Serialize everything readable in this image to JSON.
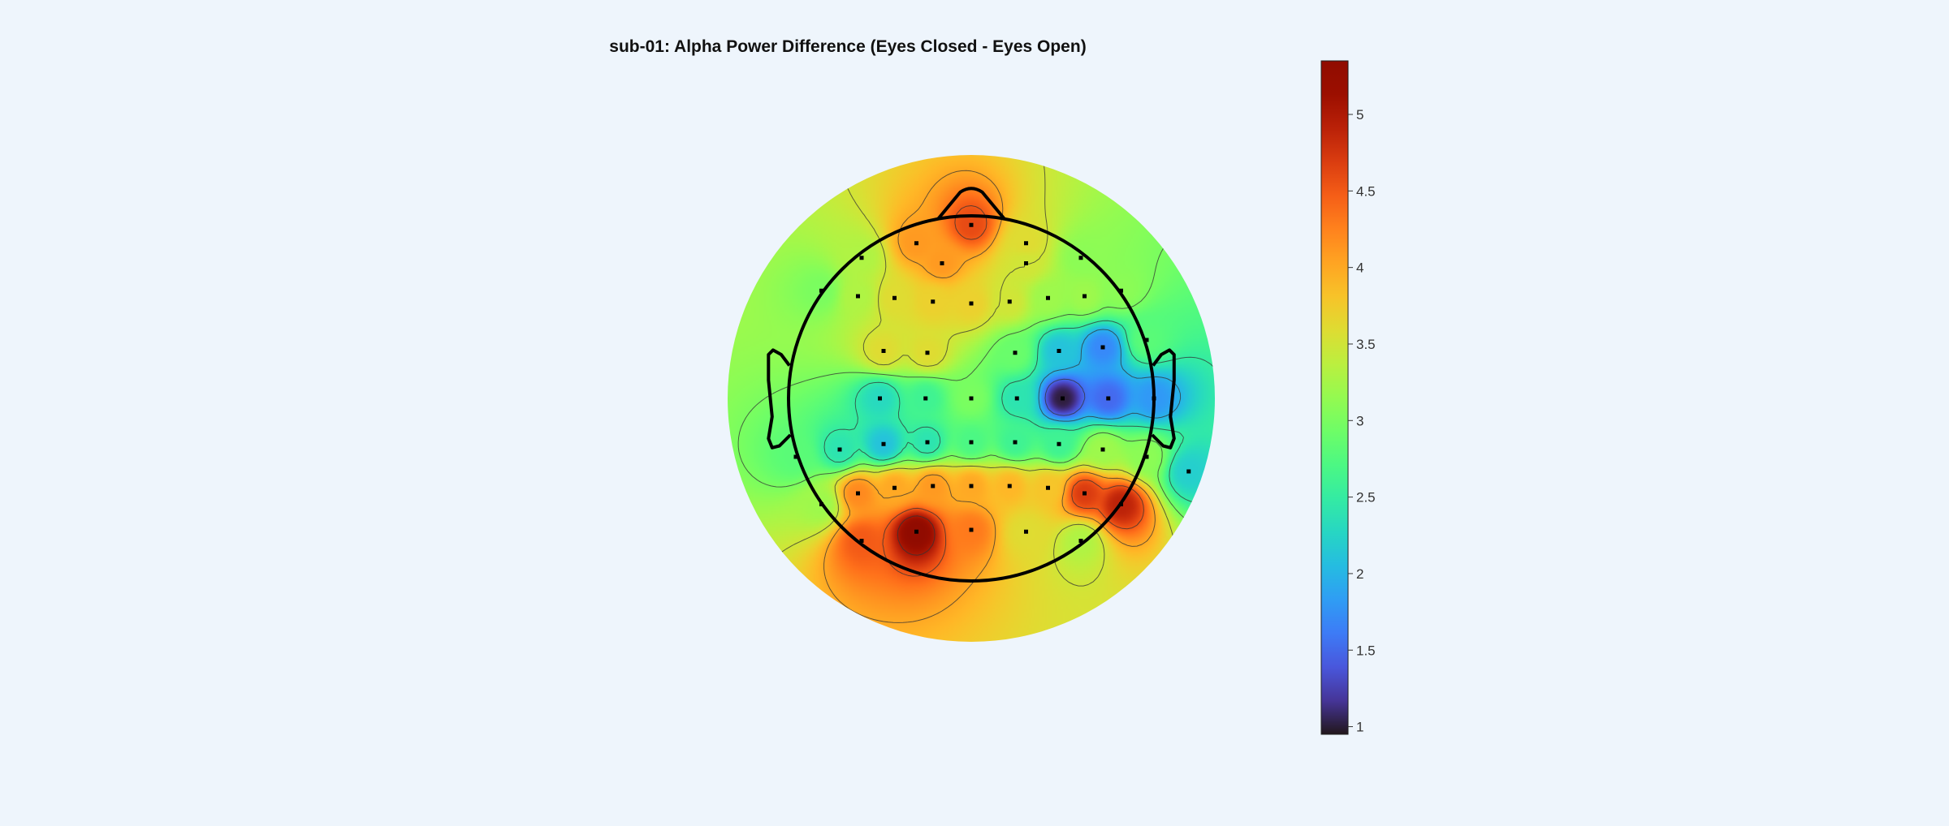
{
  "chart_data": {
    "type": "heatmap",
    "title": "sub-01: Alpha Power Difference (Eyes Closed - Eyes Open)",
    "colormap": "turbo",
    "colorbar": {
      "min": 0.95,
      "max": 5.35,
      "ticks": [
        1,
        1.5,
        2,
        2.5,
        3,
        3.5,
        4,
        4.5,
        5
      ],
      "tick_labels": [
        "1",
        "1.5",
        "2",
        "2.5",
        "3",
        "3.5",
        "4",
        "4.5",
        "5"
      ]
    },
    "channels": [
      {
        "x": 0.0,
        "y": 0.95,
        "value": 4.6
      },
      {
        "x": -0.3,
        "y": 0.85,
        "value": 4.1
      },
      {
        "x": 0.3,
        "y": 0.85,
        "value": 3.6
      },
      {
        "x": -0.6,
        "y": 0.77,
        "value": 3.3
      },
      {
        "x": 0.6,
        "y": 0.77,
        "value": 3.1
      },
      {
        "x": -0.16,
        "y": 0.74,
        "value": 4.1
      },
      {
        "x": 0.3,
        "y": 0.74,
        "value": 3.5
      },
      {
        "x": -0.82,
        "y": 0.59,
        "value": 3.0
      },
      {
        "x": -0.62,
        "y": 0.56,
        "value": 3.3
      },
      {
        "x": -0.42,
        "y": 0.55,
        "value": 3.6
      },
      {
        "x": -0.21,
        "y": 0.53,
        "value": 3.7
      },
      {
        "x": 0.0,
        "y": 0.52,
        "value": 3.7
      },
      {
        "x": 0.21,
        "y": 0.53,
        "value": 3.5
      },
      {
        "x": 0.42,
        "y": 0.55,
        "value": 3.2
      },
      {
        "x": 0.62,
        "y": 0.56,
        "value": 3.2
      },
      {
        "x": 0.82,
        "y": 0.59,
        "value": 3.1
      },
      {
        "x": -0.48,
        "y": 0.26,
        "value": 3.6
      },
      {
        "x": -0.24,
        "y": 0.25,
        "value": 3.6
      },
      {
        "x": 0.24,
        "y": 0.25,
        "value": 2.9
      },
      {
        "x": 0.48,
        "y": 0.26,
        "value": 2.1
      },
      {
        "x": 0.72,
        "y": 0.28,
        "value": 1.7
      },
      {
        "x": 0.96,
        "y": 0.32,
        "value": 2.8
      },
      {
        "x": -0.5,
        "y": 0.0,
        "value": 2.3
      },
      {
        "x": -0.25,
        "y": 0.0,
        "value": 2.6
      },
      {
        "x": 0.0,
        "y": 0.0,
        "value": 3.0
      },
      {
        "x": 0.25,
        "y": 0.0,
        "value": 2.4
      },
      {
        "x": 0.5,
        "y": 0.0,
        "value": 1.0
      },
      {
        "x": 0.75,
        "y": 0.0,
        "value": 1.5
      },
      {
        "x": 1.0,
        "y": 0.0,
        "value": 1.8
      },
      {
        "x": -0.72,
        "y": -0.28,
        "value": 2.4
      },
      {
        "x": -0.48,
        "y": -0.25,
        "value": 2.1
      },
      {
        "x": -0.24,
        "y": -0.24,
        "value": 2.4
      },
      {
        "x": 0.0,
        "y": -0.24,
        "value": 2.7
      },
      {
        "x": 0.24,
        "y": -0.24,
        "value": 2.6
      },
      {
        "x": 0.48,
        "y": -0.25,
        "value": 2.6
      },
      {
        "x": 0.72,
        "y": -0.28,
        "value": 3.2
      },
      {
        "x": -0.96,
        "y": -0.32,
        "value": 2.8
      },
      {
        "x": 0.96,
        "y": -0.32,
        "value": 3.1
      },
      {
        "x": -0.42,
        "y": -0.49,
        "value": 4.0
      },
      {
        "x": -0.21,
        "y": -0.48,
        "value": 4.1
      },
      {
        "x": 0.0,
        "y": -0.48,
        "value": 4.0
      },
      {
        "x": 0.21,
        "y": -0.48,
        "value": 3.9
      },
      {
        "x": 0.42,
        "y": -0.49,
        "value": 3.8
      },
      {
        "x": 0.62,
        "y": -0.52,
        "value": 4.7
      },
      {
        "x": 0.82,
        "y": -0.58,
        "value": 4.9
      },
      {
        "x": 1.19,
        "y": -0.4,
        "value": 2.2
      },
      {
        "x": -0.62,
        "y": -0.52,
        "value": 4.2
      },
      {
        "x": -0.82,
        "y": -0.58,
        "value": 3.2
      },
      {
        "x": -0.3,
        "y": -0.73,
        "value": 5.3
      },
      {
        "x": 0.0,
        "y": -0.72,
        "value": 4.3
      },
      {
        "x": 0.3,
        "y": -0.73,
        "value": 3.6
      },
      {
        "x": 0.6,
        "y": -0.78,
        "value": 3.3
      },
      {
        "x": -0.6,
        "y": -0.78,
        "value": 4.5
      }
    ]
  }
}
